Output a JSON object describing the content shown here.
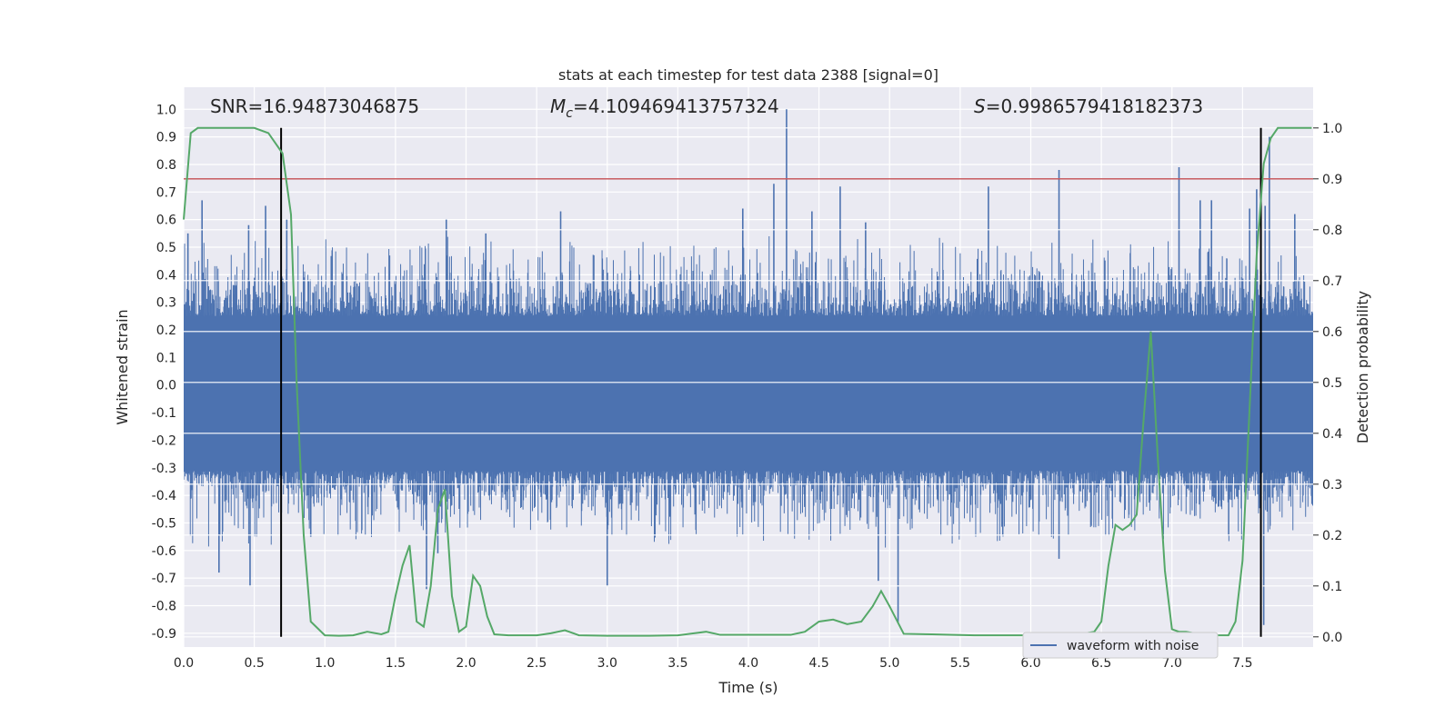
{
  "chart_data": {
    "type": "line",
    "title": "stats at each timestep for test data 2388 [signal=0]",
    "xlabel": "Time (s)",
    "ylabel": "Whitened strain",
    "y2label": "Detection probability",
    "xlim": [
      0.0,
      8.0
    ],
    "ylim": [
      -0.95,
      1.08
    ],
    "y2lim": [
      -0.02,
      1.08
    ],
    "grid": true,
    "legend_position": "lower-right",
    "x_ticks": [
      "0.0",
      "0.5",
      "1.0",
      "1.5",
      "2.0",
      "2.5",
      "3.0",
      "3.5",
      "4.0",
      "4.5",
      "5.0",
      "5.5",
      "6.0",
      "6.5",
      "7.0",
      "7.5"
    ],
    "y_ticks": [
      "1.0",
      "0.9",
      "0.8",
      "0.7",
      "0.6",
      "0.5",
      "0.4",
      "0.3",
      "0.2",
      "0.1",
      "0.0",
      "-0.1",
      "-0.2",
      "-0.3",
      "-0.4",
      "-0.5",
      "-0.6",
      "-0.7",
      "-0.8",
      "-0.9"
    ],
    "y2_ticks": [
      "1.0",
      "0.9",
      "0.8",
      "0.7",
      "0.6",
      "0.5",
      "0.4",
      "0.3",
      "0.2",
      "0.1",
      "0.0"
    ],
    "stats": {
      "snr": "SNR=16.94873046875",
      "mc_symbol": "M",
      "mc_sub": "c",
      "mc_value": "=4.109469413757324",
      "s_symbol": "S",
      "s_value": "=0.9986579418182373"
    },
    "threshold": {
      "value": 0.9,
      "axis": "y2",
      "color": "#c44e52"
    },
    "markers": [
      {
        "x": 0.69,
        "color": "#000000"
      },
      {
        "x": 7.63,
        "color": "#000000"
      }
    ],
    "series": [
      {
        "name": "waveform with noise",
        "axis": "y",
        "color": "#4c72b0",
        "style": "dense-noise",
        "core_band": [
          -0.31,
          0.25
        ],
        "typical_max": 0.55,
        "typical_min": -0.6,
        "spikes": [
          [
            0.03,
            0.55
          ],
          [
            0.13,
            0.67
          ],
          [
            0.25,
            -0.68
          ],
          [
            0.46,
            0.58
          ],
          [
            0.47,
            -0.73
          ],
          [
            0.58,
            0.65
          ],
          [
            0.73,
            0.6
          ],
          [
            0.9,
            -0.55
          ],
          [
            1.72,
            -0.74
          ],
          [
            1.8,
            -0.61
          ],
          [
            1.86,
            0.6
          ],
          [
            2.14,
            0.55
          ],
          [
            2.67,
            0.63
          ],
          [
            3.0,
            -0.73
          ],
          [
            3.96,
            0.64
          ],
          [
            4.18,
            0.73
          ],
          [
            4.27,
            1.0
          ],
          [
            4.45,
            0.63
          ],
          [
            4.65,
            0.72
          ],
          [
            4.83,
            0.59
          ],
          [
            4.92,
            -0.71
          ],
          [
            5.06,
            -0.86
          ],
          [
            5.7,
            0.72
          ],
          [
            6.2,
            0.78
          ],
          [
            6.2,
            -0.63
          ],
          [
            7.05,
            0.79
          ],
          [
            7.2,
            0.67
          ],
          [
            7.28,
            0.67
          ],
          [
            7.55,
            0.64
          ],
          [
            7.6,
            0.71
          ],
          [
            7.66,
            0.65
          ],
          [
            7.69,
            0.9
          ],
          [
            7.65,
            -0.87
          ],
          [
            7.87,
            0.62
          ]
        ]
      },
      {
        "name": "",
        "axis": "y2",
        "color": "#55a868",
        "x": [
          0.0,
          0.05,
          0.1,
          0.2,
          0.3,
          0.4,
          0.5,
          0.6,
          0.7,
          0.76,
          0.8,
          0.85,
          0.9,
          1.0,
          1.1,
          1.2,
          1.3,
          1.4,
          1.45,
          1.5,
          1.55,
          1.6,
          1.65,
          1.7,
          1.75,
          1.8,
          1.85,
          1.9,
          1.95,
          2.0,
          2.05,
          2.1,
          2.15,
          2.2,
          2.3,
          2.5,
          2.6,
          2.7,
          2.8,
          3.0,
          3.3,
          3.5,
          3.7,
          3.8,
          4.0,
          4.2,
          4.3,
          4.4,
          4.5,
          4.6,
          4.7,
          4.8,
          4.88,
          4.94,
          5.0,
          5.1,
          5.3,
          5.6,
          6.0,
          6.3,
          6.45,
          6.5,
          6.55,
          6.6,
          6.65,
          6.7,
          6.75,
          6.8,
          6.85,
          6.9,
          6.95,
          7.0,
          7.05,
          7.1,
          7.2,
          7.3,
          7.4,
          7.45,
          7.5,
          7.55,
          7.6,
          7.65,
          7.7,
          7.75,
          7.8,
          7.85,
          7.9,
          7.95,
          7.99
        ],
        "y": [
          0.82,
          0.99,
          1.0,
          1.0,
          1.0,
          1.0,
          1.0,
          0.99,
          0.95,
          0.83,
          0.5,
          0.2,
          0.03,
          0.003,
          0.002,
          0.003,
          0.01,
          0.005,
          0.01,
          0.08,
          0.14,
          0.18,
          0.03,
          0.02,
          0.1,
          0.25,
          0.29,
          0.08,
          0.01,
          0.02,
          0.12,
          0.1,
          0.04,
          0.005,
          0.003,
          0.003,
          0.007,
          0.013,
          0.003,
          0.002,
          0.002,
          0.003,
          0.01,
          0.004,
          0.004,
          0.004,
          0.004,
          0.01,
          0.03,
          0.034,
          0.025,
          0.03,
          0.06,
          0.09,
          0.06,
          0.006,
          0.005,
          0.003,
          0.003,
          0.003,
          0.01,
          0.03,
          0.14,
          0.22,
          0.21,
          0.22,
          0.24,
          0.43,
          0.6,
          0.35,
          0.13,
          0.015,
          0.01,
          0.01,
          0.005,
          0.003,
          0.003,
          0.03,
          0.15,
          0.45,
          0.75,
          0.93,
          0.98,
          1.0,
          1.0,
          1.0,
          1.0,
          1.0,
          1.0
        ]
      }
    ]
  }
}
